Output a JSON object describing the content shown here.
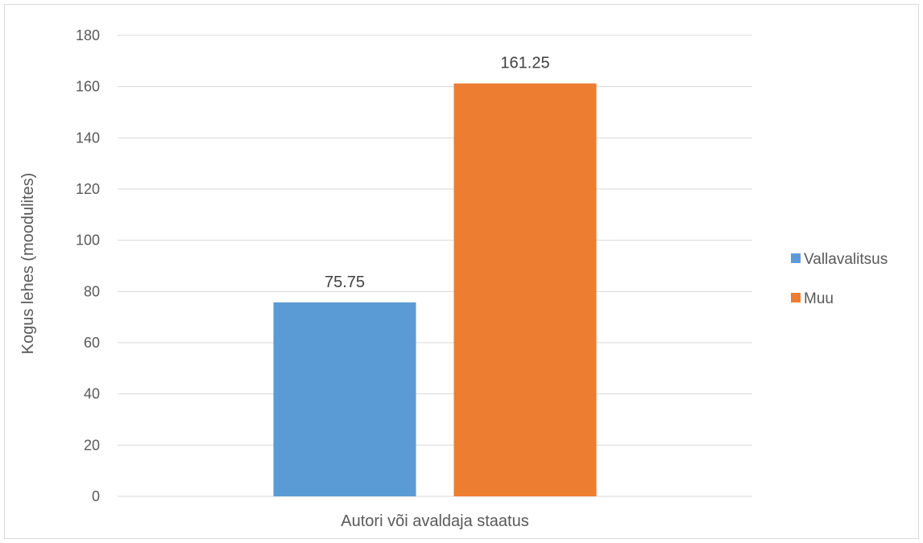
{
  "chart_data": {
    "type": "bar",
    "title": "",
    "xlabel": "Autori või avaldaja staatus",
    "ylabel": "Kogus lehes (moodulites)",
    "categories": [
      "Autori või avaldaja staatus"
    ],
    "series": [
      {
        "name": "Vallavalitsus",
        "values": [
          75.75
        ],
        "color": "#5b9bd5"
      },
      {
        "name": "Muu",
        "values": [
          161.25
        ],
        "color": "#ed7d31"
      }
    ],
    "ylim": [
      0,
      180
    ],
    "yticks": [
      0,
      20,
      40,
      60,
      80,
      100,
      120,
      140,
      160,
      180
    ],
    "grid": true,
    "legend": "right"
  }
}
